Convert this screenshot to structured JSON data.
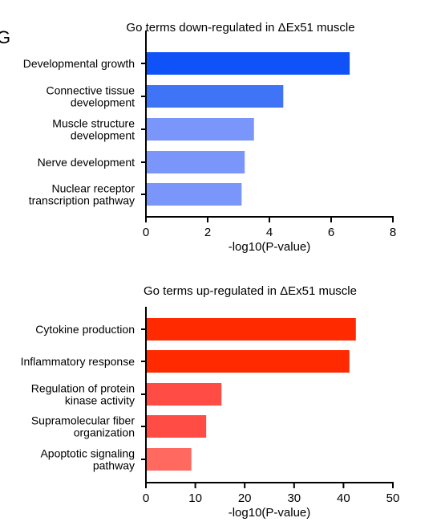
{
  "panel_letter": "G",
  "chart_data": [
    {
      "type": "bar",
      "orientation": "horizontal",
      "title": "Go terms down-regulated in ΔEx51 muscle",
      "xlabel": "-log10(P-value)",
      "ylabel": "",
      "xlim": [
        0,
        8
      ],
      "xticks": [
        "0",
        "2",
        "4",
        "6",
        "8"
      ],
      "categories": [
        [
          "Developmental growth"
        ],
        [
          "Connective tissue",
          "development"
        ],
        [
          "Muscle structure",
          "development"
        ],
        [
          "Nerve development"
        ],
        [
          "Nuclear receptor",
          "transcription pathway"
        ]
      ],
      "values": [
        6.6,
        4.45,
        3.5,
        3.2,
        3.1
      ],
      "colors": [
        "#0f52f7",
        "#3f74f7",
        "#7a96fb",
        "#7a96fb",
        "#7a96fb"
      ],
      "grid": false,
      "legend": "none"
    },
    {
      "type": "bar",
      "orientation": "horizontal",
      "title": "Go terms up-regulated in ΔEx51 muscle",
      "xlabel": "-log10(P-value)",
      "ylabel": "",
      "xlim": [
        0,
        50
      ],
      "xticks": [
        "0",
        "10",
        "20",
        "30",
        "40",
        "50"
      ],
      "categories": [
        [
          "Cytokine production"
        ],
        [
          "Inflammatory response"
        ],
        [
          "Regulation of protein",
          "kinase activity"
        ],
        [
          "Supramolecular fiber",
          "organization"
        ],
        [
          "Apoptotic signaling",
          "pathway"
        ]
      ],
      "values": [
        42.5,
        41.2,
        15.3,
        12.2,
        9.2
      ],
      "colors": [
        "#ff2a00",
        "#ff2a00",
        "#ff4c44",
        "#ff4c44",
        "#ff6960"
      ],
      "grid": false,
      "legend": "none"
    }
  ]
}
